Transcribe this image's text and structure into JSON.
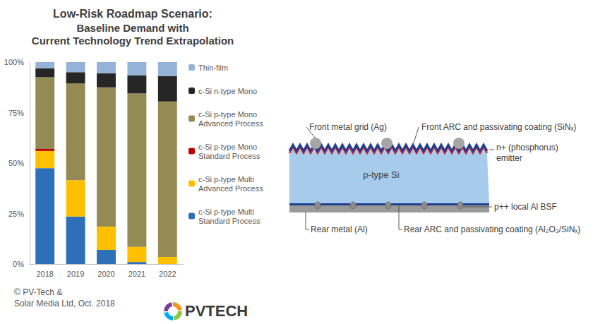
{
  "chart_data": {
    "type": "bar",
    "stacked": true,
    "title": "Low-Risk Roadmap Scenario:",
    "subtitle": "Baseline Demand with\nCurrent Technology Trend Extrapolation",
    "categories": [
      "2018",
      "2019",
      "2020",
      "2021",
      "2022"
    ],
    "series": [
      {
        "name": "c-Si p-type Multi Standard Process",
        "color": "#2e6fba",
        "values": [
          47.5,
          23.5,
          7,
          1,
          0
        ]
      },
      {
        "name": "c-Si p-type Multi Advanced Process",
        "color": "#ffc000",
        "values": [
          8.5,
          18,
          11.5,
          7.5,
          3.5
        ]
      },
      {
        "name": "c-Si p-type Mono Standard Process",
        "color": "#c00000",
        "values": [
          1,
          0,
          0,
          0,
          0
        ]
      },
      {
        "name": "c-Si p-type Mono Advanced Process",
        "color": "#948a54",
        "values": [
          35.5,
          48,
          69,
          76,
          77
        ]
      },
      {
        "name": "c-Si n-type Mono",
        "color": "#262626",
        "values": [
          4.5,
          5.5,
          7,
          9,
          12.5
        ]
      },
      {
        "name": "Thin-film",
        "color": "#95b3d7",
        "values": [
          3,
          5,
          5.5,
          6.5,
          7
        ]
      }
    ],
    "ylim": [
      0,
      100
    ],
    "yticks": [
      {
        "value": 0,
        "label": "0%"
      },
      {
        "value": 25,
        "label": "25%"
      },
      {
        "value": 50,
        "label": "50%"
      },
      {
        "value": 75,
        "label": "75%"
      },
      {
        "value": 100,
        "label": "100%"
      }
    ],
    "grid": false,
    "legend": "right"
  },
  "credit": [
    "© PV-Tech &",
    "Solar Media Ltd, Oct. 2018"
  ],
  "logo": "PVTECH",
  "diagram": {
    "bulk": "p-type Si",
    "labels": {
      "front_metal": "Front metal grid (Ag)",
      "front_arc": "Front ARC and passivating coating (SiNₓ)",
      "emitter": [
        "n+ (phosphorus)",
        "emitter"
      ],
      "bsf": "p++ local Al BSF",
      "rear_metal": "Rear metal (Al)",
      "rear_arc": "Rear ARC and passivating coating (Al₂O₃/SiNₓ)"
    }
  }
}
